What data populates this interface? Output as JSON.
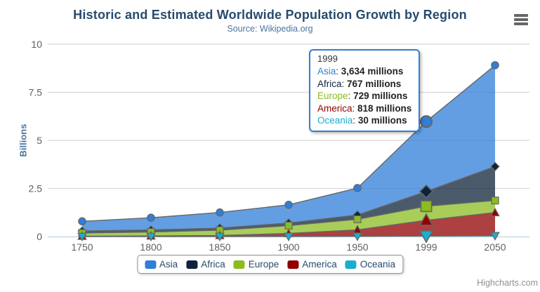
{
  "chart_data": {
    "type": "area",
    "stacking": "normal",
    "title": "Historic and Estimated Worldwide Population Growth by Region",
    "subtitle": "Source: Wikipedia.org",
    "ylabel": "Billions",
    "xlabel": "",
    "ylim": [
      0,
      10
    ],
    "yticks": [
      0,
      2.5,
      5,
      7.5,
      10
    ],
    "categories": [
      "1750",
      "1800",
      "1850",
      "1900",
      "1950",
      "1999",
      "2050"
    ],
    "values_unit": "millions",
    "grid": true,
    "legend_position": "bottom-center",
    "stack_order_bottom_to_top": [
      "Oceania",
      "America",
      "Europe",
      "Africa",
      "Asia"
    ],
    "hover": {
      "category": "1999",
      "index": 5
    },
    "series": [
      {
        "name": "Asia",
        "color": "#2f7ed8",
        "marker": "circle",
        "values": [
          502,
          635,
          809,
          947,
          1402,
          3634,
          5268
        ]
      },
      {
        "name": "Africa",
        "color": "#0d233a",
        "marker": "diamond",
        "values": [
          106,
          107,
          111,
          133,
          221,
          767,
          1766
        ]
      },
      {
        "name": "Europe",
        "color": "#8bbc21",
        "marker": "square",
        "values": [
          163,
          203,
          276,
          408,
          547,
          729,
          628
        ]
      },
      {
        "name": "America",
        "color": "#910000",
        "marker": "triangle",
        "values": [
          18,
          31,
          54,
          156,
          339,
          818,
          1201
        ]
      },
      {
        "name": "Oceania",
        "color": "#1aadce",
        "marker": "triangle-down",
        "values": [
          2,
          2,
          2,
          6,
          13,
          30,
          46
        ]
      }
    ]
  },
  "tooltip": {
    "header": "1999",
    "border_color": "#2f7ed8",
    "rows": [
      {
        "label": "Asia",
        "value": "3,634 millions",
        "color": "#2f7ed8"
      },
      {
        "label": "Africa",
        "value": "767 millions",
        "color": "#0d233a"
      },
      {
        "label": "Europe",
        "value": "729 millions",
        "color": "#8bbc21"
      },
      {
        "label": "America",
        "value": "818 millions",
        "color": "#910000"
      },
      {
        "label": "Oceania",
        "value": "30 millions",
        "color": "#1aadce"
      }
    ]
  },
  "credits": {
    "label": "Highcharts.com"
  },
  "colors": {
    "title": "#274b6d",
    "subtitle": "#4d759e",
    "axis_labels": "#606060",
    "grid_line": "#d8d8d8",
    "axis_line": "#c0d0e0",
    "series_outline": "#666666"
  },
  "icons": {
    "export_menu": "hamburger-menu-icon"
  }
}
